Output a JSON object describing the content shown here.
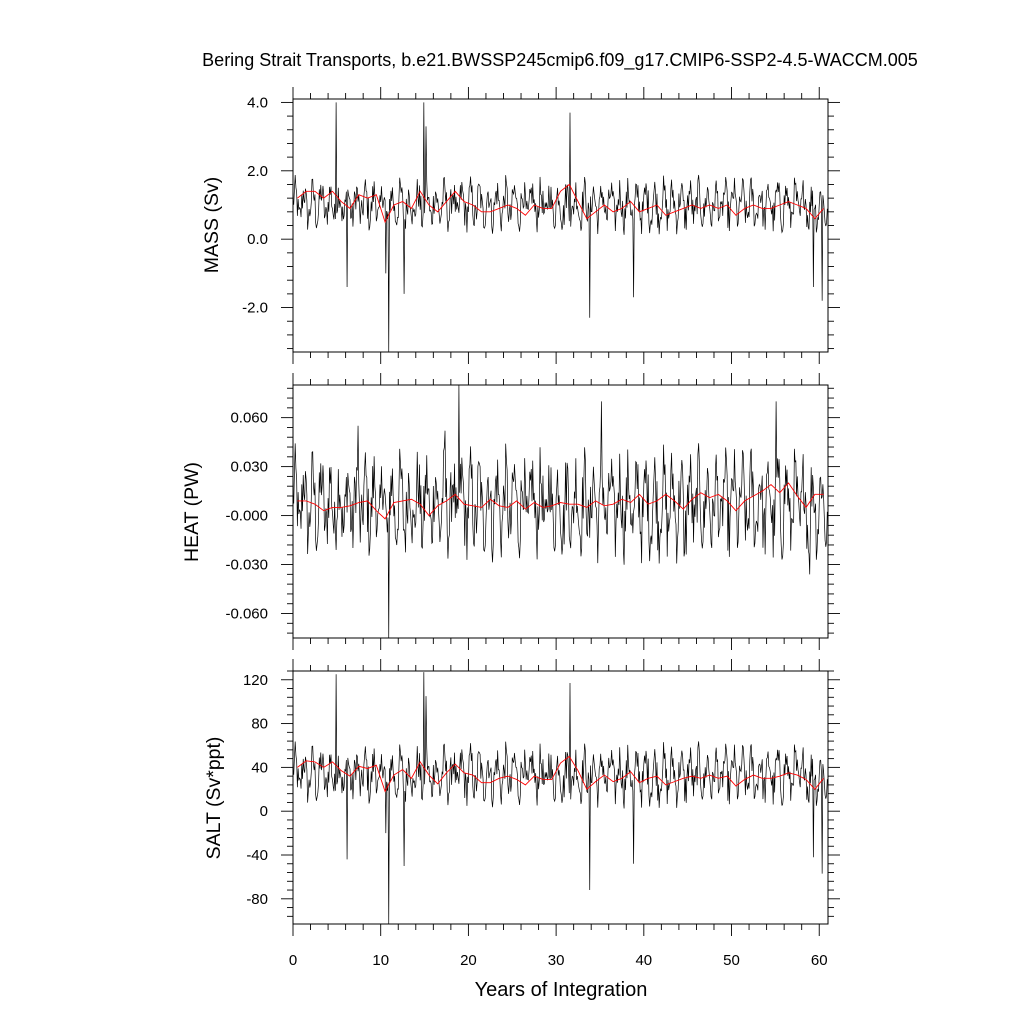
{
  "chart_data": {
    "type": "line",
    "title": "Bering Strait Transports, b.e21.BWSSP245cmip6.f09_g17.CMIP6-SSP2-4.5-WACCM.005",
    "xlabel": "Years of Integration",
    "xlim": [
      0,
      61
    ],
    "x_ticks": [
      0,
      10,
      20,
      30,
      40,
      50,
      60
    ],
    "x_tick_labels": [
      "0",
      "10",
      "20",
      "30",
      "40",
      "50",
      "60"
    ],
    "grid": false,
    "legend": "none",
    "series_colors": {
      "monthly": "#000000",
      "annual_mean": "#ff0000"
    },
    "panels": [
      {
        "id": "mass",
        "ylabel": "MASS (Sv)",
        "ylim": [
          -3.3,
          4.1
        ],
        "y_ticks": [
          4.0,
          2.0,
          0.0,
          -2.0
        ],
        "y_tick_labels": [
          "4.0",
          "2.0",
          "0.0",
          "-2.0"
        ],
        "monthly_baseline": 1.0,
        "monthly_amplitude": 0.4,
        "spikes": [
          [
            4.9,
            4.0
          ],
          [
            6.2,
            -1.4
          ],
          [
            10.6,
            -1.0
          ],
          [
            10.9,
            -3.3
          ],
          [
            12.7,
            -1.6
          ],
          [
            14.9,
            4.0
          ],
          [
            15.2,
            3.3
          ],
          [
            31.6,
            3.7
          ],
          [
            33.8,
            -2.3
          ],
          [
            38.8,
            -1.7
          ],
          [
            59.3,
            -1.4
          ],
          [
            60.3,
            -1.8
          ]
        ],
        "annual_mean": [
          [
            0.5,
            1.2
          ],
          [
            1.5,
            1.4
          ],
          [
            2.5,
            1.4
          ],
          [
            3.5,
            1.2
          ],
          [
            4.5,
            1.4
          ],
          [
            5.5,
            1.1
          ],
          [
            6.5,
            0.9
          ],
          [
            7.5,
            1.3
          ],
          [
            8.5,
            1.2
          ],
          [
            9.5,
            1.3
          ],
          [
            10.5,
            0.5
          ],
          [
            11.5,
            1.0
          ],
          [
            12.5,
            1.1
          ],
          [
            13.5,
            0.9
          ],
          [
            14.5,
            1.4
          ],
          [
            15.5,
            1.0
          ],
          [
            16.5,
            0.8
          ],
          [
            17.5,
            1.1
          ],
          [
            18.5,
            1.4
          ],
          [
            19.5,
            1.1
          ],
          [
            20.5,
            1.0
          ],
          [
            21.5,
            0.8
          ],
          [
            22.5,
            0.8
          ],
          [
            23.5,
            0.9
          ],
          [
            24.5,
            1.0
          ],
          [
            25.5,
            0.9
          ],
          [
            26.5,
            0.7
          ],
          [
            27.5,
            1.0
          ],
          [
            28.5,
            0.9
          ],
          [
            29.5,
            0.9
          ],
          [
            30.5,
            1.4
          ],
          [
            31.5,
            1.6
          ],
          [
            32.5,
            1.1
          ],
          [
            33.5,
            0.6
          ],
          [
            34.5,
            0.8
          ],
          [
            35.5,
            1.0
          ],
          [
            36.5,
            0.8
          ],
          [
            37.5,
            0.9
          ],
          [
            38.5,
            1.1
          ],
          [
            39.5,
            0.8
          ],
          [
            40.5,
            0.9
          ],
          [
            41.5,
            1.0
          ],
          [
            42.5,
            0.7
          ],
          [
            43.5,
            0.8
          ],
          [
            44.5,
            0.9
          ],
          [
            45.5,
            1.0
          ],
          [
            46.5,
            0.9
          ],
          [
            47.5,
            1.0
          ],
          [
            48.5,
            0.9
          ],
          [
            49.5,
            1.0
          ],
          [
            50.5,
            0.7
          ],
          [
            51.5,
            0.9
          ],
          [
            52.5,
            1.0
          ],
          [
            53.5,
            0.9
          ],
          [
            54.5,
            0.9
          ],
          [
            55.5,
            1.0
          ],
          [
            56.5,
            1.1
          ],
          [
            57.5,
            1.0
          ],
          [
            58.5,
            0.9
          ],
          [
            59.5,
            0.6
          ],
          [
            60.5,
            0.9
          ]
        ]
      },
      {
        "id": "heat",
        "ylabel": "HEAT (PW)",
        "ylim": [
          -0.075,
          0.08
        ],
        "y_ticks": [
          0.06,
          0.03,
          0.0,
          -0.03,
          -0.06
        ],
        "y_tick_labels": [
          "0.060",
          "0.030",
          "-0.000",
          "-0.030",
          "-0.060"
        ],
        "monthly_baseline": 0.007,
        "monthly_amplitude": 0.017,
        "spikes": [
          [
            10.9,
            -0.075
          ],
          [
            18.9,
            0.08
          ],
          [
            7.4,
            0.055
          ],
          [
            17.3,
            0.052
          ],
          [
            35.2,
            0.07
          ],
          [
            55.1,
            0.07
          ],
          [
            58.9,
            -0.036
          ],
          [
            44.6,
            -0.025
          ]
        ],
        "annual_mean": [
          [
            0.5,
            0.009
          ],
          [
            1.5,
            0.009
          ],
          [
            2.5,
            0.007
          ],
          [
            3.5,
            0.003
          ],
          [
            4.5,
            0.005
          ],
          [
            5.5,
            0.005
          ],
          [
            6.5,
            0.006
          ],
          [
            7.5,
            0.008
          ],
          [
            8.5,
            0.009
          ],
          [
            9.5,
            0.003
          ],
          [
            10.5,
            -0.002
          ],
          [
            11.5,
            0.008
          ],
          [
            12.5,
            0.009
          ],
          [
            13.5,
            0.01
          ],
          [
            14.5,
            0.007
          ],
          [
            15.5,
            0.0
          ],
          [
            16.5,
            0.006
          ],
          [
            17.5,
            0.009
          ],
          [
            18.5,
            0.013
          ],
          [
            19.5,
            0.007
          ],
          [
            20.5,
            0.006
          ],
          [
            21.5,
            0.005
          ],
          [
            22.5,
            0.01
          ],
          [
            23.5,
            0.006
          ],
          [
            24.5,
            0.005
          ],
          [
            25.5,
            0.009
          ],
          [
            26.5,
            0.004
          ],
          [
            27.5,
            0.008
          ],
          [
            28.5,
            0.005
          ],
          [
            29.5,
            0.006
          ],
          [
            30.5,
            0.008
          ],
          [
            31.5,
            0.007
          ],
          [
            32.5,
            0.007
          ],
          [
            33.5,
            0.005
          ],
          [
            34.5,
            0.009
          ],
          [
            35.5,
            0.006
          ],
          [
            36.5,
            0.007
          ],
          [
            37.5,
            0.01
          ],
          [
            38.5,
            0.008
          ],
          [
            39.5,
            0.013
          ],
          [
            40.5,
            0.007
          ],
          [
            41.5,
            0.009
          ],
          [
            42.5,
            0.013
          ],
          [
            43.5,
            0.009
          ],
          [
            44.5,
            0.004
          ],
          [
            45.5,
            0.01
          ],
          [
            46.5,
            0.014
          ],
          [
            47.5,
            0.011
          ],
          [
            48.5,
            0.013
          ],
          [
            49.5,
            0.009
          ],
          [
            50.5,
            0.003
          ],
          [
            51.5,
            0.009
          ],
          [
            52.5,
            0.012
          ],
          [
            53.5,
            0.015
          ],
          [
            54.5,
            0.019
          ],
          [
            55.5,
            0.014
          ],
          [
            56.5,
            0.02
          ],
          [
            57.5,
            0.012
          ],
          [
            58.5,
            0.005
          ],
          [
            59.5,
            0.013
          ],
          [
            60.5,
            0.013
          ]
        ]
      },
      {
        "id": "salt",
        "ylabel": "SALT (Sv*ppt)",
        "ylim": [
          -103,
          128
        ],
        "y_ticks": [
          120,
          80,
          40,
          0,
          -40,
          -80
        ],
        "y_tick_labels": [
          "120",
          "80",
          "40",
          "0",
          "-40",
          "-80"
        ],
        "monthly_baseline": 33,
        "monthly_amplitude": 14,
        "spikes": [
          [
            4.9,
            125
          ],
          [
            6.2,
            -44
          ],
          [
            10.6,
            -20
          ],
          [
            10.9,
            -103
          ],
          [
            12.7,
            -50
          ],
          [
            14.9,
            127
          ],
          [
            15.2,
            105
          ],
          [
            31.6,
            117
          ],
          [
            33.8,
            -72
          ],
          [
            38.8,
            -48
          ],
          [
            59.3,
            -42
          ],
          [
            60.3,
            -57
          ]
        ],
        "annual_mean": [
          [
            0.5,
            40
          ],
          [
            1.5,
            46
          ],
          [
            2.5,
            45
          ],
          [
            3.5,
            40
          ],
          [
            4.5,
            45
          ],
          [
            5.5,
            37
          ],
          [
            6.5,
            32
          ],
          [
            7.5,
            41
          ],
          [
            8.5,
            39
          ],
          [
            9.5,
            42
          ],
          [
            10.5,
            18
          ],
          [
            11.5,
            33
          ],
          [
            12.5,
            38
          ],
          [
            13.5,
            30
          ],
          [
            14.5,
            45
          ],
          [
            15.5,
            33
          ],
          [
            16.5,
            25
          ],
          [
            17.5,
            35
          ],
          [
            18.5,
            43
          ],
          [
            19.5,
            35
          ],
          [
            20.5,
            33
          ],
          [
            21.5,
            26
          ],
          [
            22.5,
            26
          ],
          [
            23.5,
            30
          ],
          [
            24.5,
            32
          ],
          [
            25.5,
            29
          ],
          [
            26.5,
            24
          ],
          [
            27.5,
            32
          ],
          [
            28.5,
            29
          ],
          [
            29.5,
            29
          ],
          [
            30.5,
            44
          ],
          [
            31.5,
            50
          ],
          [
            32.5,
            37
          ],
          [
            33.5,
            20
          ],
          [
            34.5,
            27
          ],
          [
            35.5,
            33
          ],
          [
            36.5,
            27
          ],
          [
            37.5,
            30
          ],
          [
            38.5,
            36
          ],
          [
            39.5,
            26
          ],
          [
            40.5,
            30
          ],
          [
            41.5,
            32
          ],
          [
            42.5,
            24
          ],
          [
            43.5,
            27
          ],
          [
            44.5,
            30
          ],
          [
            45.5,
            32
          ],
          [
            46.5,
            30
          ],
          [
            47.5,
            33
          ],
          [
            48.5,
            30
          ],
          [
            49.5,
            32
          ],
          [
            50.5,
            23
          ],
          [
            51.5,
            29
          ],
          [
            52.5,
            33
          ],
          [
            53.5,
            30
          ],
          [
            54.5,
            30
          ],
          [
            55.5,
            32
          ],
          [
            56.5,
            35
          ],
          [
            57.5,
            33
          ],
          [
            58.5,
            29
          ],
          [
            59.5,
            20
          ],
          [
            60.5,
            30
          ]
        ]
      }
    ]
  }
}
